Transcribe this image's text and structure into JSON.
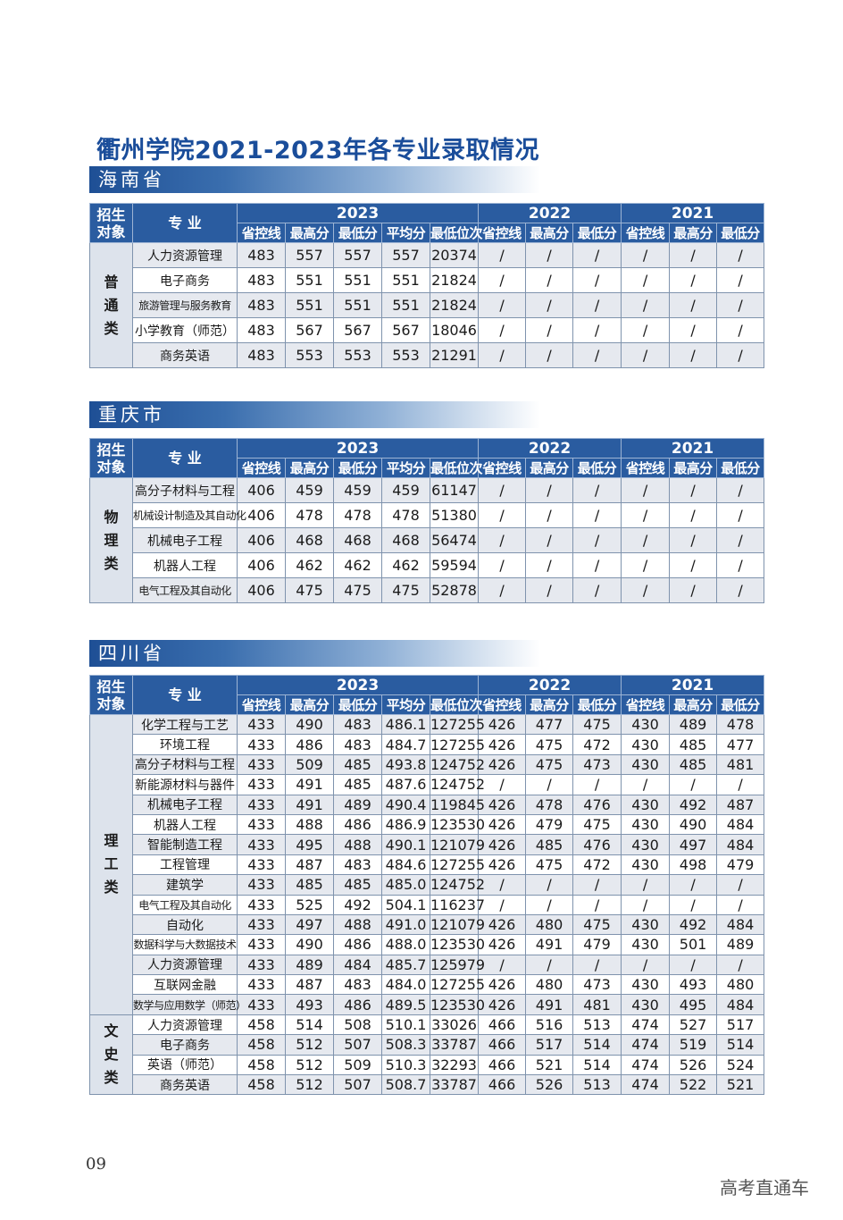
{
  "title": "衢州学院2021-2023年各专业录取情况",
  "header": {
    "category": "招生\n对象",
    "major": "专  业",
    "years": [
      "2023",
      "2022",
      "2021"
    ],
    "cols2023": [
      "省控线",
      "最高分",
      "最低分",
      "平均分",
      "最低位次"
    ],
    "cols2022": [
      "省控线",
      "最高分",
      "最低分"
    ],
    "cols2021": [
      "省控线",
      "最高分",
      "最低分"
    ]
  },
  "sections": [
    {
      "name": "海南省",
      "groups": [
        {
          "category": "普\n通\n类",
          "rows": [
            {
              "major": "人力资源管理",
              "v": [
                "483",
                "557",
                "557",
                "557",
                "20374",
                "/",
                "/",
                "/",
                "/",
                "/",
                "/"
              ]
            },
            {
              "major": "电子商务",
              "v": [
                "483",
                "551",
                "551",
                "551",
                "21824",
                "/",
                "/",
                "/",
                "/",
                "/",
                "/"
              ]
            },
            {
              "major": "旅游管理与服务教育",
              "v": [
                "483",
                "551",
                "551",
                "551",
                "21824",
                "/",
                "/",
                "/",
                "/",
                "/",
                "/"
              ]
            },
            {
              "major": "小学教育（师范）",
              "v": [
                "483",
                "567",
                "567",
                "567",
                "18046",
                "/",
                "/",
                "/",
                "/",
                "/",
                "/"
              ]
            },
            {
              "major": "商务英语",
              "v": [
                "483",
                "553",
                "553",
                "553",
                "21291",
                "/",
                "/",
                "/",
                "/",
                "/",
                "/"
              ]
            }
          ]
        }
      ]
    },
    {
      "name": "重庆市",
      "groups": [
        {
          "category": "物\n理\n类",
          "rows": [
            {
              "major": "高分子材料与工程",
              "v": [
                "406",
                "459",
                "459",
                "459",
                "61147",
                "/",
                "/",
                "/",
                "/",
                "/",
                "/"
              ]
            },
            {
              "major": "机械设计制造及其自动化",
              "v": [
                "406",
                "478",
                "478",
                "478",
                "51380",
                "/",
                "/",
                "/",
                "/",
                "/",
                "/"
              ]
            },
            {
              "major": "机械电子工程",
              "v": [
                "406",
                "468",
                "468",
                "468",
                "56474",
                "/",
                "/",
                "/",
                "/",
                "/",
                "/"
              ]
            },
            {
              "major": "机器人工程",
              "v": [
                "406",
                "462",
                "462",
                "462",
                "59594",
                "/",
                "/",
                "/",
                "/",
                "/",
                "/"
              ]
            },
            {
              "major": "电气工程及其自动化",
              "v": [
                "406",
                "475",
                "475",
                "475",
                "52878",
                "/",
                "/",
                "/",
                "/",
                "/",
                "/"
              ]
            }
          ]
        }
      ]
    },
    {
      "name": "四川省",
      "groups": [
        {
          "category": "理\n工\n类",
          "rows": [
            {
              "major": "化学工程与工艺",
              "v": [
                "433",
                "490",
                "483",
                "486.1",
                "127255",
                "426",
                "477",
                "475",
                "430",
                "489",
                "478"
              ]
            },
            {
              "major": "环境工程",
              "v": [
                "433",
                "486",
                "483",
                "484.7",
                "127255",
                "426",
                "475",
                "472",
                "430",
                "485",
                "477"
              ]
            },
            {
              "major": "高分子材料与工程",
              "v": [
                "433",
                "509",
                "485",
                "493.8",
                "124752",
                "426",
                "475",
                "473",
                "430",
                "485",
                "481"
              ]
            },
            {
              "major": "新能源材料与器件",
              "v": [
                "433",
                "491",
                "485",
                "487.6",
                "124752",
                "/",
                "/",
                "/",
                "/",
                "/",
                "/"
              ]
            },
            {
              "major": "机械电子工程",
              "v": [
                "433",
                "491",
                "489",
                "490.4",
                "119845",
                "426",
                "478",
                "476",
                "430",
                "492",
                "487"
              ]
            },
            {
              "major": "机器人工程",
              "v": [
                "433",
                "488",
                "486",
                "486.9",
                "123530",
                "426",
                "479",
                "475",
                "430",
                "490",
                "484"
              ]
            },
            {
              "major": "智能制造工程",
              "v": [
                "433",
                "495",
                "488",
                "490.1",
                "121079",
                "426",
                "485",
                "476",
                "430",
                "497",
                "484"
              ]
            },
            {
              "major": "工程管理",
              "v": [
                "433",
                "487",
                "483",
                "484.6",
                "127255",
                "426",
                "475",
                "472",
                "430",
                "498",
                "479"
              ]
            },
            {
              "major": "建筑学",
              "v": [
                "433",
                "485",
                "485",
                "485.0",
                "124752",
                "/",
                "/",
                "/",
                "/",
                "/",
                "/"
              ]
            },
            {
              "major": "电气工程及其自动化",
              "v": [
                "433",
                "525",
                "492",
                "504.1",
                "116237",
                "/",
                "/",
                "/",
                "/",
                "/",
                "/"
              ]
            },
            {
              "major": "自动化",
              "v": [
                "433",
                "497",
                "488",
                "491.0",
                "121079",
                "426",
                "480",
                "475",
                "430",
                "492",
                "484"
              ]
            },
            {
              "major": "数据科学与大数据技术",
              "v": [
                "433",
                "490",
                "486",
                "488.0",
                "123530",
                "426",
                "491",
                "479",
                "430",
                "501",
                "489"
              ]
            },
            {
              "major": "人力资源管理",
              "v": [
                "433",
                "489",
                "484",
                "485.7",
                "125979",
                "/",
                "/",
                "/",
                "/",
                "/",
                "/"
              ]
            },
            {
              "major": "互联网金融",
              "v": [
                "433",
                "487",
                "483",
                "484.0",
                "127255",
                "426",
                "480",
                "473",
                "430",
                "493",
                "480"
              ]
            },
            {
              "major": "数学与应用数学（师范）",
              "v": [
                "433",
                "493",
                "486",
                "489.5",
                "123530",
                "426",
                "491",
                "481",
                "430",
                "495",
                "484"
              ]
            }
          ]
        },
        {
          "category": "文\n史\n类",
          "rows": [
            {
              "major": "人力资源管理",
              "v": [
                "458",
                "514",
                "508",
                "510.1",
                "33026",
                "466",
                "516",
                "513",
                "474",
                "527",
                "517"
              ]
            },
            {
              "major": "电子商务",
              "v": [
                "458",
                "512",
                "507",
                "508.3",
                "33787",
                "466",
                "517",
                "514",
                "474",
                "519",
                "514"
              ]
            },
            {
              "major": "英语（师范）",
              "v": [
                "458",
                "512",
                "509",
                "510.3",
                "32293",
                "466",
                "521",
                "514",
                "474",
                "526",
                "524"
              ]
            },
            {
              "major": "商务英语",
              "v": [
                "458",
                "512",
                "507",
                "508.7",
                "33787",
                "466",
                "526",
                "513",
                "474",
                "522",
                "521"
              ]
            }
          ]
        }
      ]
    }
  ],
  "page_number": "09",
  "watermark": "高考直通车"
}
